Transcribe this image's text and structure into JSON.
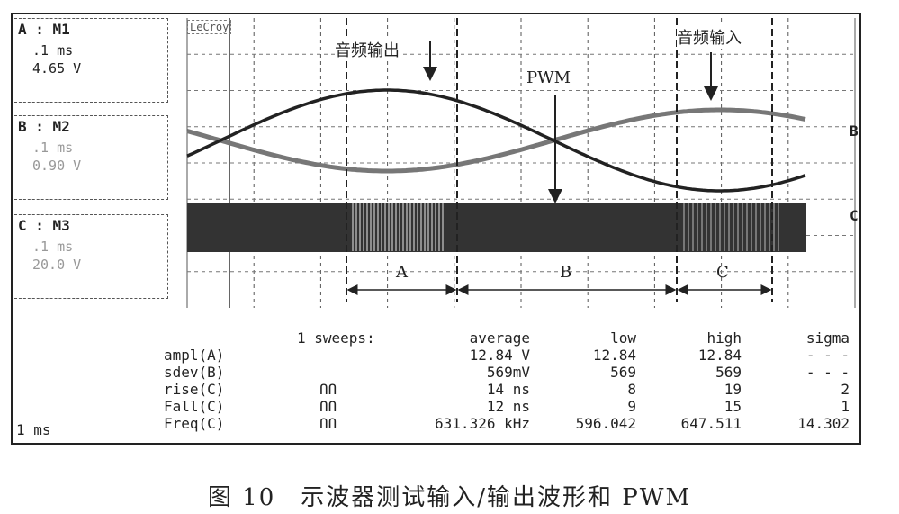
{
  "channels": [
    {
      "title": "A : M1",
      "time": ".1 ms",
      "volts": "4.65 V"
    },
    {
      "title": "B : M2",
      "time": ".1 ms",
      "volts": "0.90 V"
    },
    {
      "title": "C : M3",
      "time": ".1 ms",
      "volts": "20.0 V"
    }
  ],
  "brand": "LeCroy",
  "timebase": "1 ms",
  "annotations": {
    "audio_out": "音频输出",
    "pwm": "PWM",
    "audio_in": "音频输入",
    "region_a": "A",
    "region_b": "B",
    "region_c": "C",
    "trace_b": "B",
    "trace_c": "C"
  },
  "measurements": {
    "header": [
      "1 sweeps:",
      "average",
      "low",
      "high",
      "sigma"
    ],
    "rows": [
      {
        "name": "ampl(A)",
        "icon": "",
        "average": "12.84 V",
        "low": "12.84",
        "high": "12.84",
        "sigma": "- - -"
      },
      {
        "name": "sdev(B)",
        "icon": "",
        "average": "569mV",
        "low": "569",
        "high": "569",
        "sigma": "- - -"
      },
      {
        "name": "rise(C)",
        "icon": "ՈՈ",
        "average": "14 ns",
        "low": "8",
        "high": "19",
        "sigma": "2"
      },
      {
        "name": "Fall(C)",
        "icon": "ՈՈ",
        "average": "12 ns",
        "low": "9",
        "high": "15",
        "sigma": "1"
      },
      {
        "name": "Freq(C)",
        "icon": "ՈՈ",
        "average": "631.326 kHz",
        "low": "596.042",
        "high": "647.511",
        "sigma": "14.302"
      }
    ]
  },
  "caption": "图 10　示波器测试输入/输出波形和 PWM"
}
